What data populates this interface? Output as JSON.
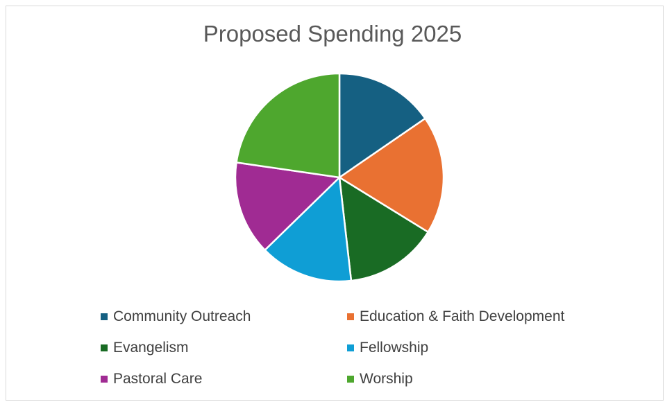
{
  "chart_data": {
    "type": "pie",
    "title": "Proposed Spending 2025",
    "categories": [
      "Community Outreach",
      "Education & Faith Development",
      "Evangelism",
      "Fellowship",
      "Pastoral Care",
      "Worship"
    ],
    "values": [
      15.4,
      18.4,
      14.4,
      14.5,
      14.6,
      22.7
    ],
    "unit": "percent (estimated)",
    "colors": [
      "#156082",
      "#E97132",
      "#196B24",
      "#0F9ED5",
      "#A02B93",
      "#4EA72E"
    ],
    "start_angle_deg": 0,
    "direction": "clockwise",
    "legend_position": "bottom"
  }
}
